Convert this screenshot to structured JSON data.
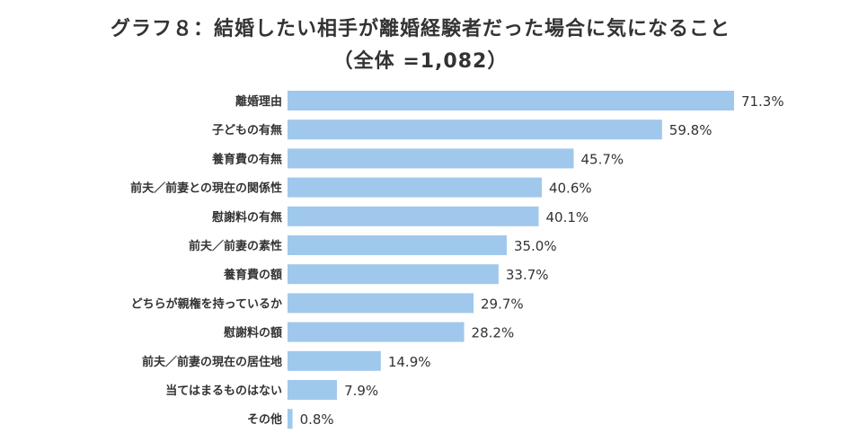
{
  "chart_data": {
    "type": "bar",
    "orientation": "horizontal",
    "title": "グラフ８：結婚したい相手が離婚経験者だった場合に気になること",
    "subtitle": "（全体 =1,082）",
    "categories": [
      "離婚理由",
      "子どもの有無",
      "養育費の有無",
      "前夫／前妻との現在の関係性",
      "慰謝料の有無",
      "前夫／前妻の素性",
      "養育費の額",
      "どちらが親権を持っているか",
      "慰謝料の額",
      "前夫／前妻の現在の居住地",
      "当てはまるものはない",
      "その他"
    ],
    "values": [
      71.3,
      59.8,
      45.7,
      40.6,
      40.1,
      35.0,
      33.7,
      29.7,
      28.2,
      14.9,
      7.9,
      0.8
    ],
    "value_labels": [
      "71.3%",
      "59.8%",
      "45.7%",
      "40.6%",
      "40.1%",
      "35.0%",
      "33.7%",
      "29.7%",
      "28.2%",
      "14.9%",
      "7.9%",
      "0.8%"
    ],
    "xlim": [
      0,
      100
    ],
    "grid": false,
    "bar_color": "#a0c8ec"
  }
}
